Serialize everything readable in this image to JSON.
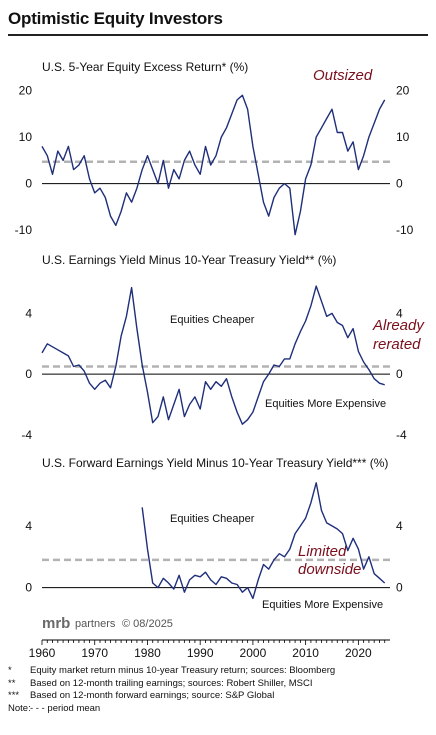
{
  "title": "Optimistic Equity Investors",
  "brand": {
    "logo_text": "mrb",
    "name": "partners",
    "copyright": "© 08/2025"
  },
  "footnotes": [
    {
      "mark": "*",
      "text": "Equity market return minus 10-year Treasury return; sources: Bloomberg"
    },
    {
      "mark": "**",
      "text": "Based on 12-month trailing earnings; sources: Robert Shiller, MSCI"
    },
    {
      "mark": "***",
      "text": "Based on 12-month forward earnings; source: S&P Global"
    },
    {
      "mark": "Note:",
      "text": "- - - period mean"
    }
  ],
  "colors": {
    "series": "#1f2f7a",
    "mean": "#b3b3b3",
    "callout": "#7a0f1d",
    "zero": "#000000"
  },
  "chart_data": [
    {
      "type": "line",
      "title": "U.S. 5-Year Equity Excess Return* (%)",
      "xlim": [
        1960,
        2026
      ],
      "ylim": [
        -13,
        21
      ],
      "yticks": [
        -10,
        0,
        10,
        20
      ],
      "xticks": [
        1960,
        1970,
        1980,
        1990,
        2000,
        2010,
        2020
      ],
      "mean": 4.7,
      "callouts": [
        "Outsized"
      ],
      "annotations": [],
      "series": [
        {
          "x": [
            1960,
            1961,
            1962,
            1963,
            1964,
            1965,
            1966,
            1967,
            1968,
            1969,
            1970,
            1971,
            1972,
            1973,
            1974,
            1975,
            1976,
            1977,
            1978,
            1979,
            1980,
            1981,
            1982,
            1983,
            1984,
            1985,
            1986,
            1987,
            1988,
            1989,
            1990,
            1991,
            1992,
            1993,
            1994,
            1995,
            1996,
            1997,
            1998,
            1999,
            2000,
            2001,
            2002,
            2003,
            2004,
            2005,
            2006,
            2007,
            2008,
            2009,
            2010,
            2011,
            2012,
            2013,
            2014,
            2015,
            2016,
            2017,
            2018,
            2019,
            2020,
            2021,
            2022,
            2023,
            2024,
            2025
          ],
          "values": [
            8,
            6,
            2,
            7,
            5,
            8,
            3,
            4,
            6,
            1,
            -2,
            -1,
            -3,
            -7,
            -9,
            -6,
            -2,
            -4,
            -1,
            3,
            6,
            3,
            0,
            5,
            -1,
            3,
            1,
            5,
            7,
            4,
            2,
            8,
            4,
            6,
            10,
            12,
            15,
            18,
            19,
            16,
            8,
            2,
            -4,
            -7,
            -3,
            -1,
            0,
            -1,
            -11,
            -6,
            1,
            4,
            10,
            12,
            14,
            16,
            11,
            11,
            7,
            9,
            3,
            6,
            10,
            13,
            16,
            18
          ]
        }
      ]
    },
    {
      "type": "line",
      "title": "U.S. Earnings Yield Minus 10-Year Treasury Yield** (%)",
      "xlim": [
        1960,
        2026
      ],
      "ylim": [
        -4.8,
        6.2
      ],
      "yticks": [
        -4,
        0,
        4
      ],
      "xticks": [
        1960,
        1970,
        1980,
        1990,
        2000,
        2010,
        2020
      ],
      "mean": 0.5,
      "callouts": [
        "Already",
        "rerated"
      ],
      "annotations": [
        "Equities Cheaper",
        "Equities More Expensive"
      ],
      "series": [
        {
          "x": [
            1960,
            1961,
            1962,
            1963,
            1964,
            1965,
            1966,
            1967,
            1968,
            1969,
            1970,
            1971,
            1972,
            1973,
            1974,
            1975,
            1976,
            1977,
            1978,
            1979,
            1980,
            1981,
            1982,
            1983,
            1984,
            1985,
            1986,
            1987,
            1988,
            1989,
            1990,
            1991,
            1992,
            1993,
            1994,
            1995,
            1996,
            1997,
            1998,
            1999,
            2000,
            2001,
            2002,
            2003,
            2004,
            2005,
            2006,
            2007,
            2008,
            2009,
            2010,
            2011,
            2012,
            2013,
            2014,
            2015,
            2016,
            2017,
            2018,
            2019,
            2020,
            2021,
            2022,
            2023,
            2024,
            2025
          ],
          "values": [
            1.4,
            2.0,
            1.8,
            1.6,
            1.4,
            1.2,
            0.5,
            0.6,
            0.2,
            -0.6,
            -1.0,
            -0.6,
            -0.4,
            -0.9,
            0.5,
            2.5,
            3.8,
            5.7,
            3.0,
            0.6,
            -1.2,
            -3.2,
            -2.8,
            -1.5,
            -3.0,
            -2.0,
            -1.0,
            -2.8,
            -2.0,
            -1.5,
            -2.3,
            -0.5,
            -1.0,
            -0.5,
            -0.8,
            -0.3,
            -1.5,
            -2.5,
            -3.3,
            -3.0,
            -2.5,
            -1.5,
            -0.5,
            0.0,
            0.6,
            0.5,
            1.0,
            1.0,
            2.0,
            2.8,
            3.5,
            4.5,
            5.8,
            4.8,
            3.8,
            4.0,
            3.4,
            3.2,
            2.4,
            3.0,
            1.5,
            0.8,
            0.3,
            -0.3,
            -0.6,
            -0.7
          ]
        }
      ]
    },
    {
      "type": "line",
      "title": "U.S. Forward Earnings Yield Minus 10-Year Treasury Yield*** (%)",
      "xlim": [
        1960,
        2026
      ],
      "ylim": [
        -1.0,
        7.5
      ],
      "yticks": [
        0,
        4
      ],
      "xticks": [
        1960,
        1970,
        1980,
        1990,
        2000,
        2010,
        2020
      ],
      "mean": 1.8,
      "callouts": [
        "Limited",
        "downside"
      ],
      "annotations": [
        "Equities Cheaper",
        "Equities More Expensive"
      ],
      "series": [
        {
          "x": [
            1979,
            1980,
            1981,
            1982,
            1983,
            1984,
            1985,
            1986,
            1987,
            1988,
            1989,
            1990,
            1991,
            1992,
            1993,
            1994,
            1995,
            1996,
            1997,
            1998,
            1999,
            2000,
            2001,
            2002,
            2003,
            2004,
            2005,
            2006,
            2007,
            2008,
            2009,
            2010,
            2011,
            2012,
            2013,
            2014,
            2015,
            2016,
            2017,
            2018,
            2019,
            2020,
            2021,
            2022,
            2023,
            2024,
            2025
          ],
          "values": [
            5.2,
            2.5,
            0.3,
            0.0,
            0.6,
            0.3,
            -0.1,
            0.8,
            -0.3,
            0.5,
            0.8,
            0.7,
            1.0,
            0.5,
            0.2,
            0.7,
            0.6,
            0.3,
            0.2,
            -0.3,
            0.0,
            -0.7,
            0.5,
            1.5,
            1.2,
            1.8,
            2.2,
            2.0,
            2.5,
            3.5,
            4.0,
            4.5,
            5.5,
            6.8,
            5.0,
            4.2,
            4.0,
            3.8,
            3.5,
            2.4,
            3.2,
            2.5,
            1.2,
            2.0,
            0.9,
            0.6,
            0.3
          ]
        }
      ]
    }
  ]
}
